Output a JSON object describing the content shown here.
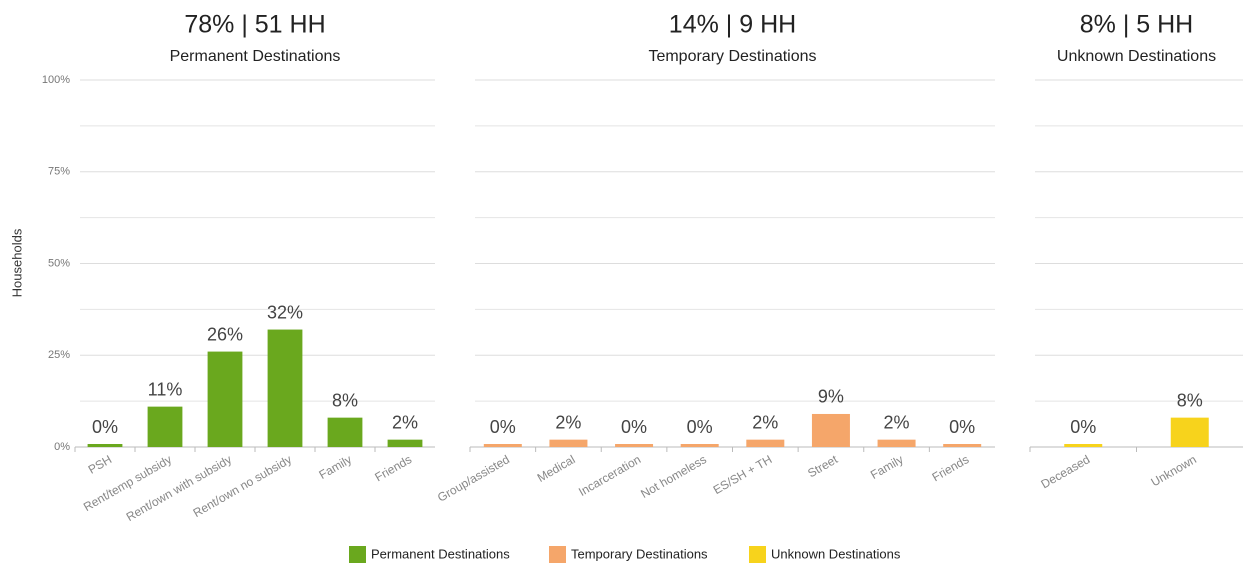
{
  "chart_data": [
    {
      "type": "bar",
      "title": "78% | 51 HH",
      "subtitle": "Permanent Destinations",
      "ylabel": "Households",
      "categories": [
        "PSH",
        "Rent/temp subsidy",
        "Rent/own with subsidy",
        "Rent/own no subsidy",
        "Family",
        "Friends"
      ],
      "values": [
        0,
        11,
        26,
        32,
        8,
        2
      ],
      "value_labels": [
        "0%",
        "11%",
        "26%",
        "32%",
        "8%",
        "2%"
      ],
      "color": "#6aa81e",
      "ylim": [
        0,
        100
      ],
      "yticks": [
        {
          "value": 0,
          "label": "0%"
        },
        {
          "value": 25,
          "label": "25%"
        },
        {
          "value": 50,
          "label": "50%"
        },
        {
          "value": 75,
          "label": "75%"
        },
        {
          "value": 100,
          "label": "100%"
        }
      ],
      "minor_yticks": [
        12.5,
        37.5,
        62.5,
        87.5
      ],
      "grid": true
    },
    {
      "type": "bar",
      "title": "14% | 9 HH",
      "subtitle": "Temporary Destinations",
      "categories": [
        "Group/assisted",
        "Medical",
        "Incarceration",
        "Not homeless",
        "ES/SH + TH",
        "Street",
        "Family",
        "Friends"
      ],
      "values": [
        0,
        2,
        0,
        0,
        2,
        9,
        2,
        0
      ],
      "value_labels": [
        "0%",
        "2%",
        "0%",
        "0%",
        "2%",
        "9%",
        "2%",
        "0%"
      ],
      "color": "#f5a66a",
      "ylim": [
        0,
        100
      ]
    },
    {
      "type": "bar",
      "title": "8% | 5 HH",
      "subtitle": "Unknown Destinations",
      "categories": [
        "Deceased",
        "Unknown"
      ],
      "values": [
        0,
        8
      ],
      "value_labels": [
        "0%",
        "8%"
      ],
      "color": "#f7d31c",
      "ylim": [
        0,
        100
      ]
    }
  ]
}
